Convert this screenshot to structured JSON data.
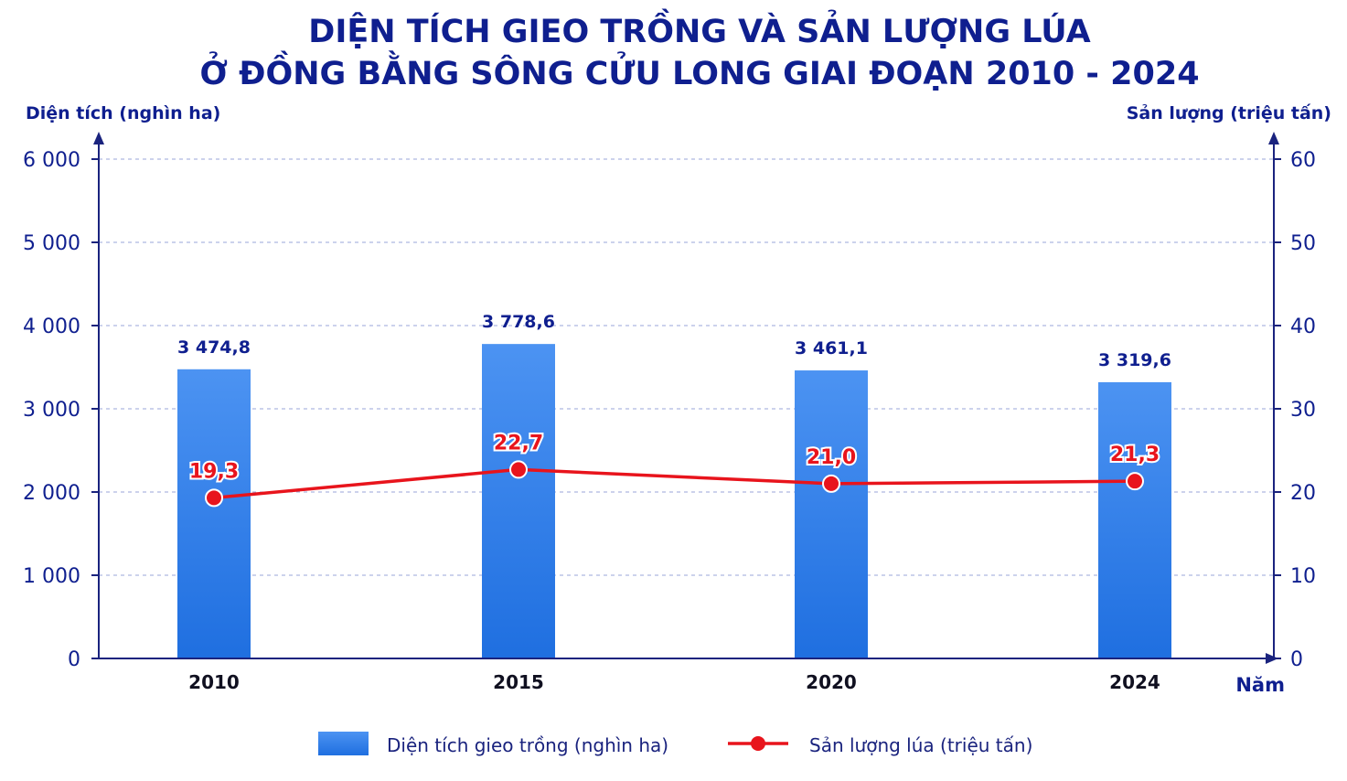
{
  "chart_data": {
    "type": "bar+line",
    "title_line1": "DIỆN TÍCH GIEO TRỒNG VÀ SẢN LƯỢNG LÚA",
    "title_line2": "Ở ĐỒNG BẰNG SÔNG CỬU LONG GIAI ĐOẠN 2010 - 2024",
    "y_left_label": "Diện tích (nghìn ha)",
    "y_right_label": "Sản lượng (triệu tấn)",
    "x_label": "Năm",
    "categories": [
      "2010",
      "2015",
      "2020",
      "2024"
    ],
    "y_left_range": [
      0,
      6000
    ],
    "y_left_ticks": [
      0,
      1000,
      2000,
      3000,
      4000,
      5000,
      6000
    ],
    "y_left_tick_labels": [
      "0",
      "1 000",
      "2 000",
      "3 000",
      "4 000",
      "5 000",
      "6 000"
    ],
    "y_right_range": [
      0,
      60
    ],
    "y_right_ticks": [
      0,
      10,
      20,
      30,
      40,
      50,
      60
    ],
    "y_right_tick_labels": [
      "0",
      "10",
      "20",
      "30",
      "40",
      "50",
      "60"
    ],
    "grid": true,
    "legend_position": "bottom",
    "series": [
      {
        "name": "Diện tích gieo trồng (nghìn ha)",
        "type": "bar",
        "axis": "left",
        "color": "#2f7fe8",
        "values": [
          3474.8,
          3778.6,
          3461.1,
          3319.6
        ],
        "labels": [
          "3 474,8",
          "3 778,6",
          "3 461,1",
          "3 319,6"
        ]
      },
      {
        "name": "Sản lượng lúa (triệu tấn)",
        "type": "line",
        "axis": "right",
        "color": "#e8141c",
        "values": [
          19.3,
          22.7,
          21.0,
          21.3
        ],
        "labels": [
          "19,3",
          "22,7",
          "21,0",
          "21,3"
        ]
      }
    ]
  }
}
